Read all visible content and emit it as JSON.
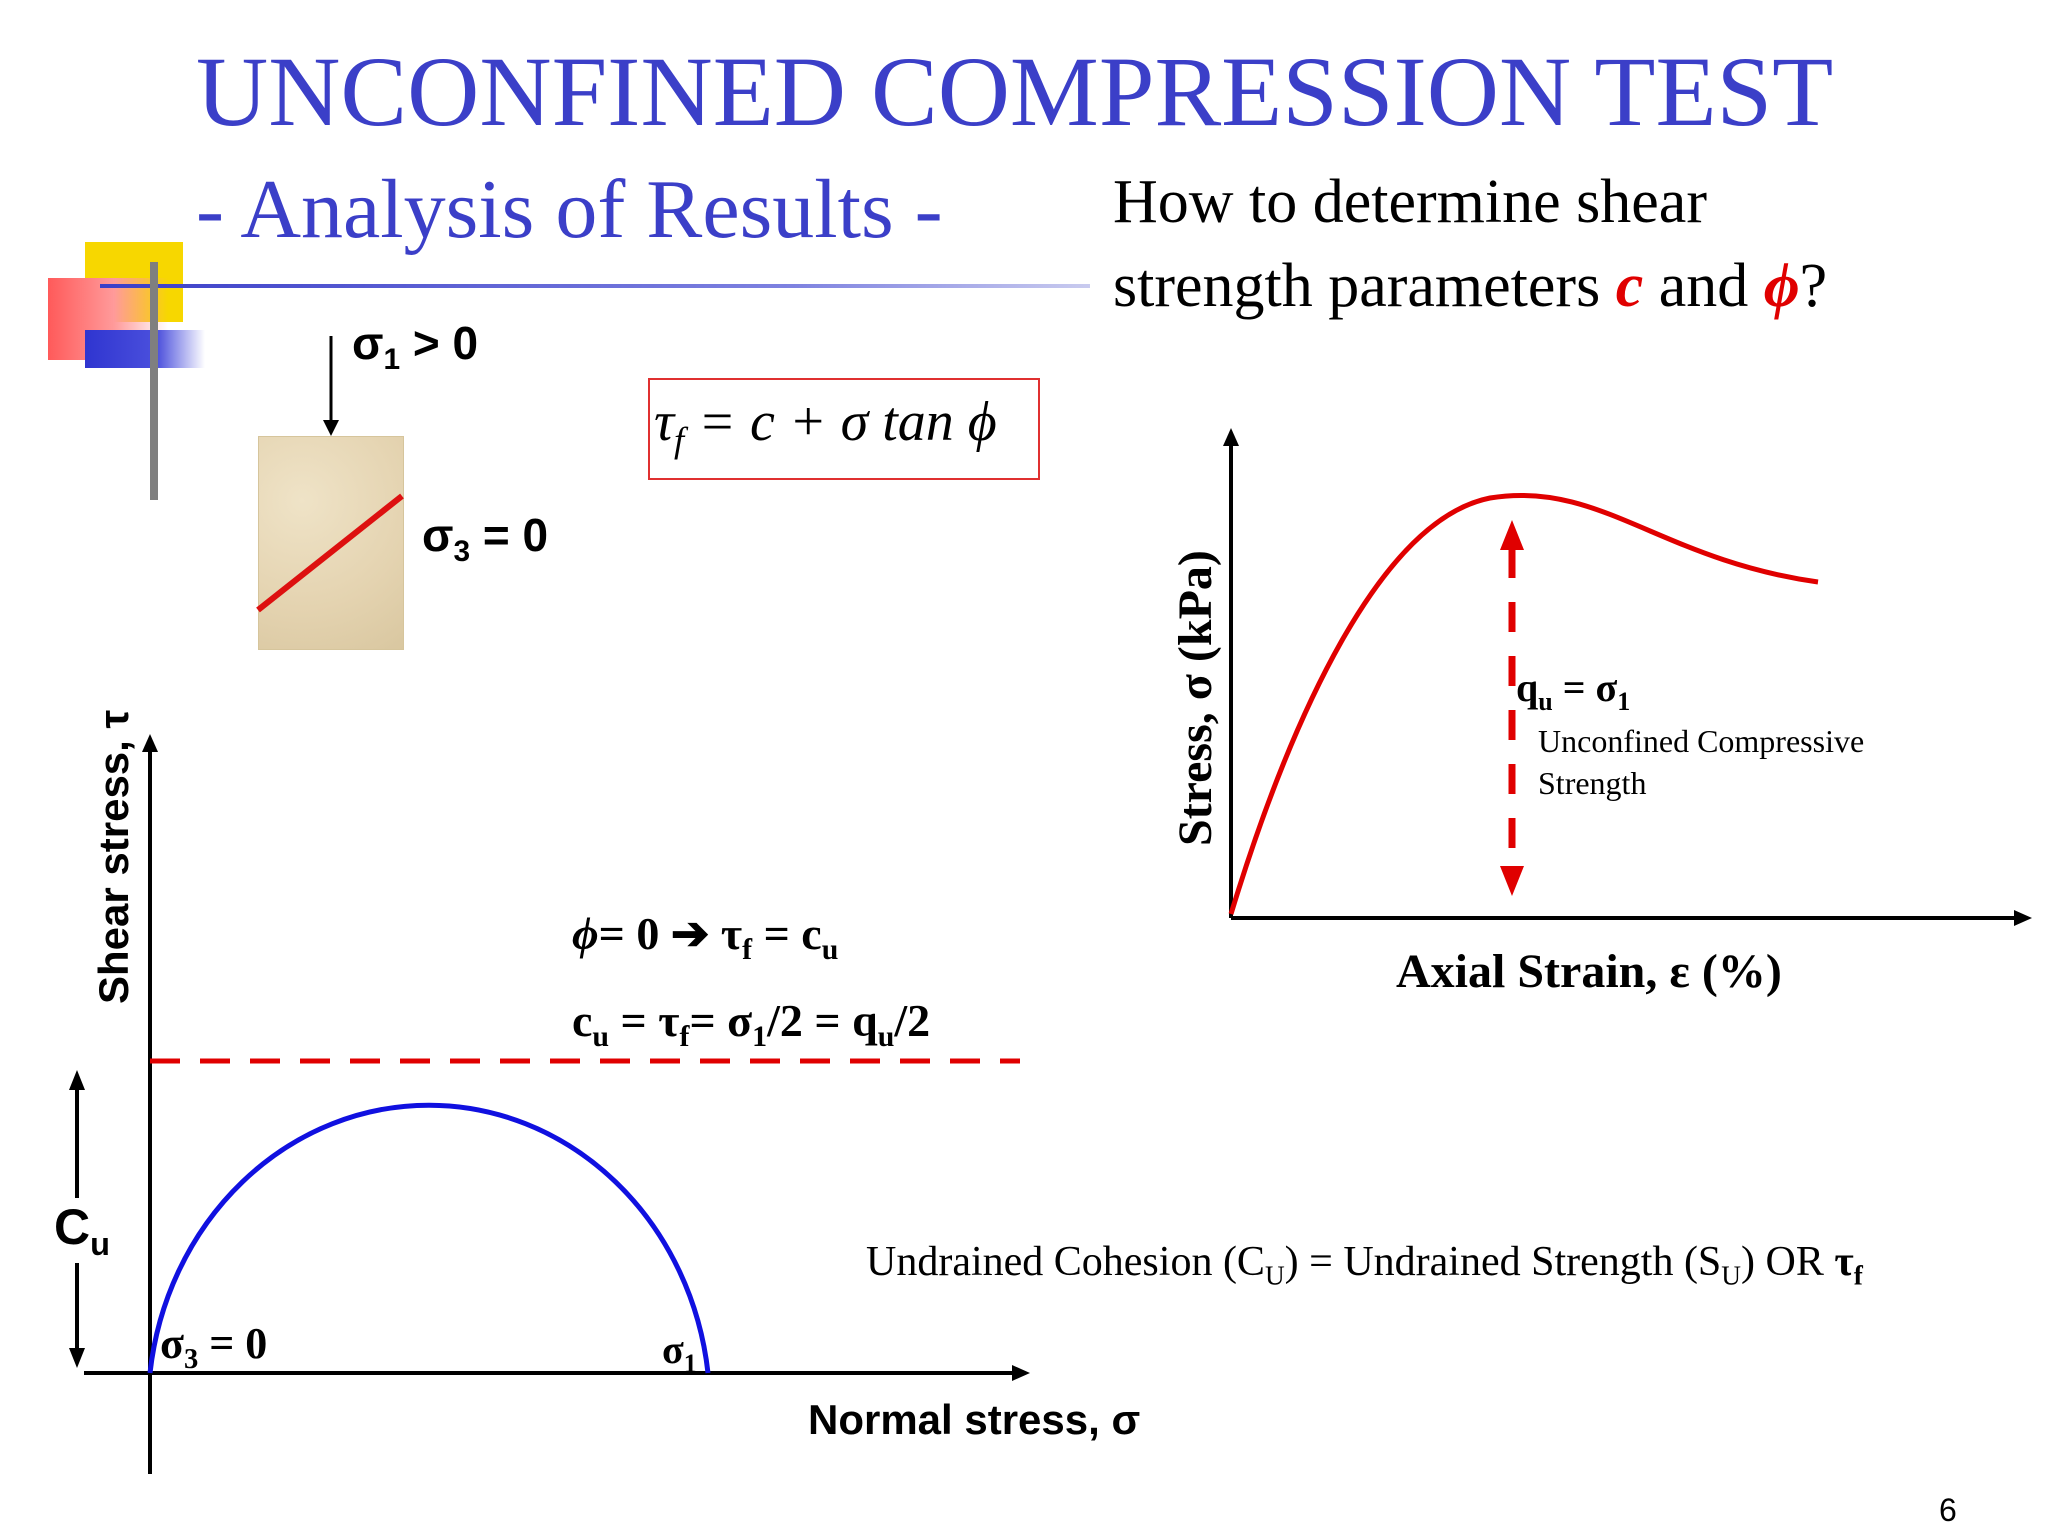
{
  "title": "UNCONFINED COMPRESSION TEST",
  "subtitle": "- Analysis of Results -",
  "question": {
    "line1": "How to determine shear",
    "line2_prefix": "strength parameters ",
    "c": "c",
    "and": " and ",
    "phi": "ϕ",
    "qmark": "?"
  },
  "sample": {
    "sigma1_label": "σ",
    "sigma1_sub": "1",
    "sigma1_rest": " > 0",
    "sigma3_label": "σ",
    "sigma3_sub": "3",
    "sigma3_rest": " = 0"
  },
  "formula": {
    "tau": "τ",
    "tau_sub": "f",
    "rest": " = c + σ tan ϕ"
  },
  "stress_strain": {
    "ylabel": "Stress, σ (kPa)",
    "xlabel": "Axial Strain, ε (%)",
    "qu": "q",
    "qu_sub": "u",
    "qu_rest": " = σ",
    "qu_sub2": "1",
    "desc_line1": "Unconfined Compressive",
    "desc_line2": "Strength"
  },
  "mohr": {
    "ylabel": "Shear stress, τ",
    "xlabel": "Normal stress, σ",
    "cu": "C",
    "cu_sub": "u",
    "eq1_phi": "ϕ",
    "eq1_a": "= 0 ",
    "eq1_arrow": "➔",
    "eq1_b": " τ",
    "eq1_sub": "f",
    "eq1_c": " = c",
    "eq1_sub2": "u",
    "eq2": "c",
    "eq2_sub1": "u",
    "eq2_b": " = τ",
    "eq2_sub2": "f",
    "eq2_c": "= σ",
    "eq2_sub3": "1",
    "eq2_d": "/2 = q",
    "eq2_sub4": "u",
    "eq2_e": "/2",
    "sigma3": "σ",
    "sigma3_sub": "3",
    "sigma3_rest": " = 0",
    "sigma1": "σ",
    "sigma1_sub": "1"
  },
  "note": {
    "a": "Undrained Cohesion (C",
    "a_sub": "U",
    "b": ") = Undrained Strength (S",
    "b_sub": "U",
    "c": ") OR ",
    "tau": "τ",
    "tau_sub": "f"
  },
  "page_number": "6",
  "colors": {
    "title": "#3b3fc8",
    "red": "#e00000",
    "circle": "#1010e0"
  }
}
